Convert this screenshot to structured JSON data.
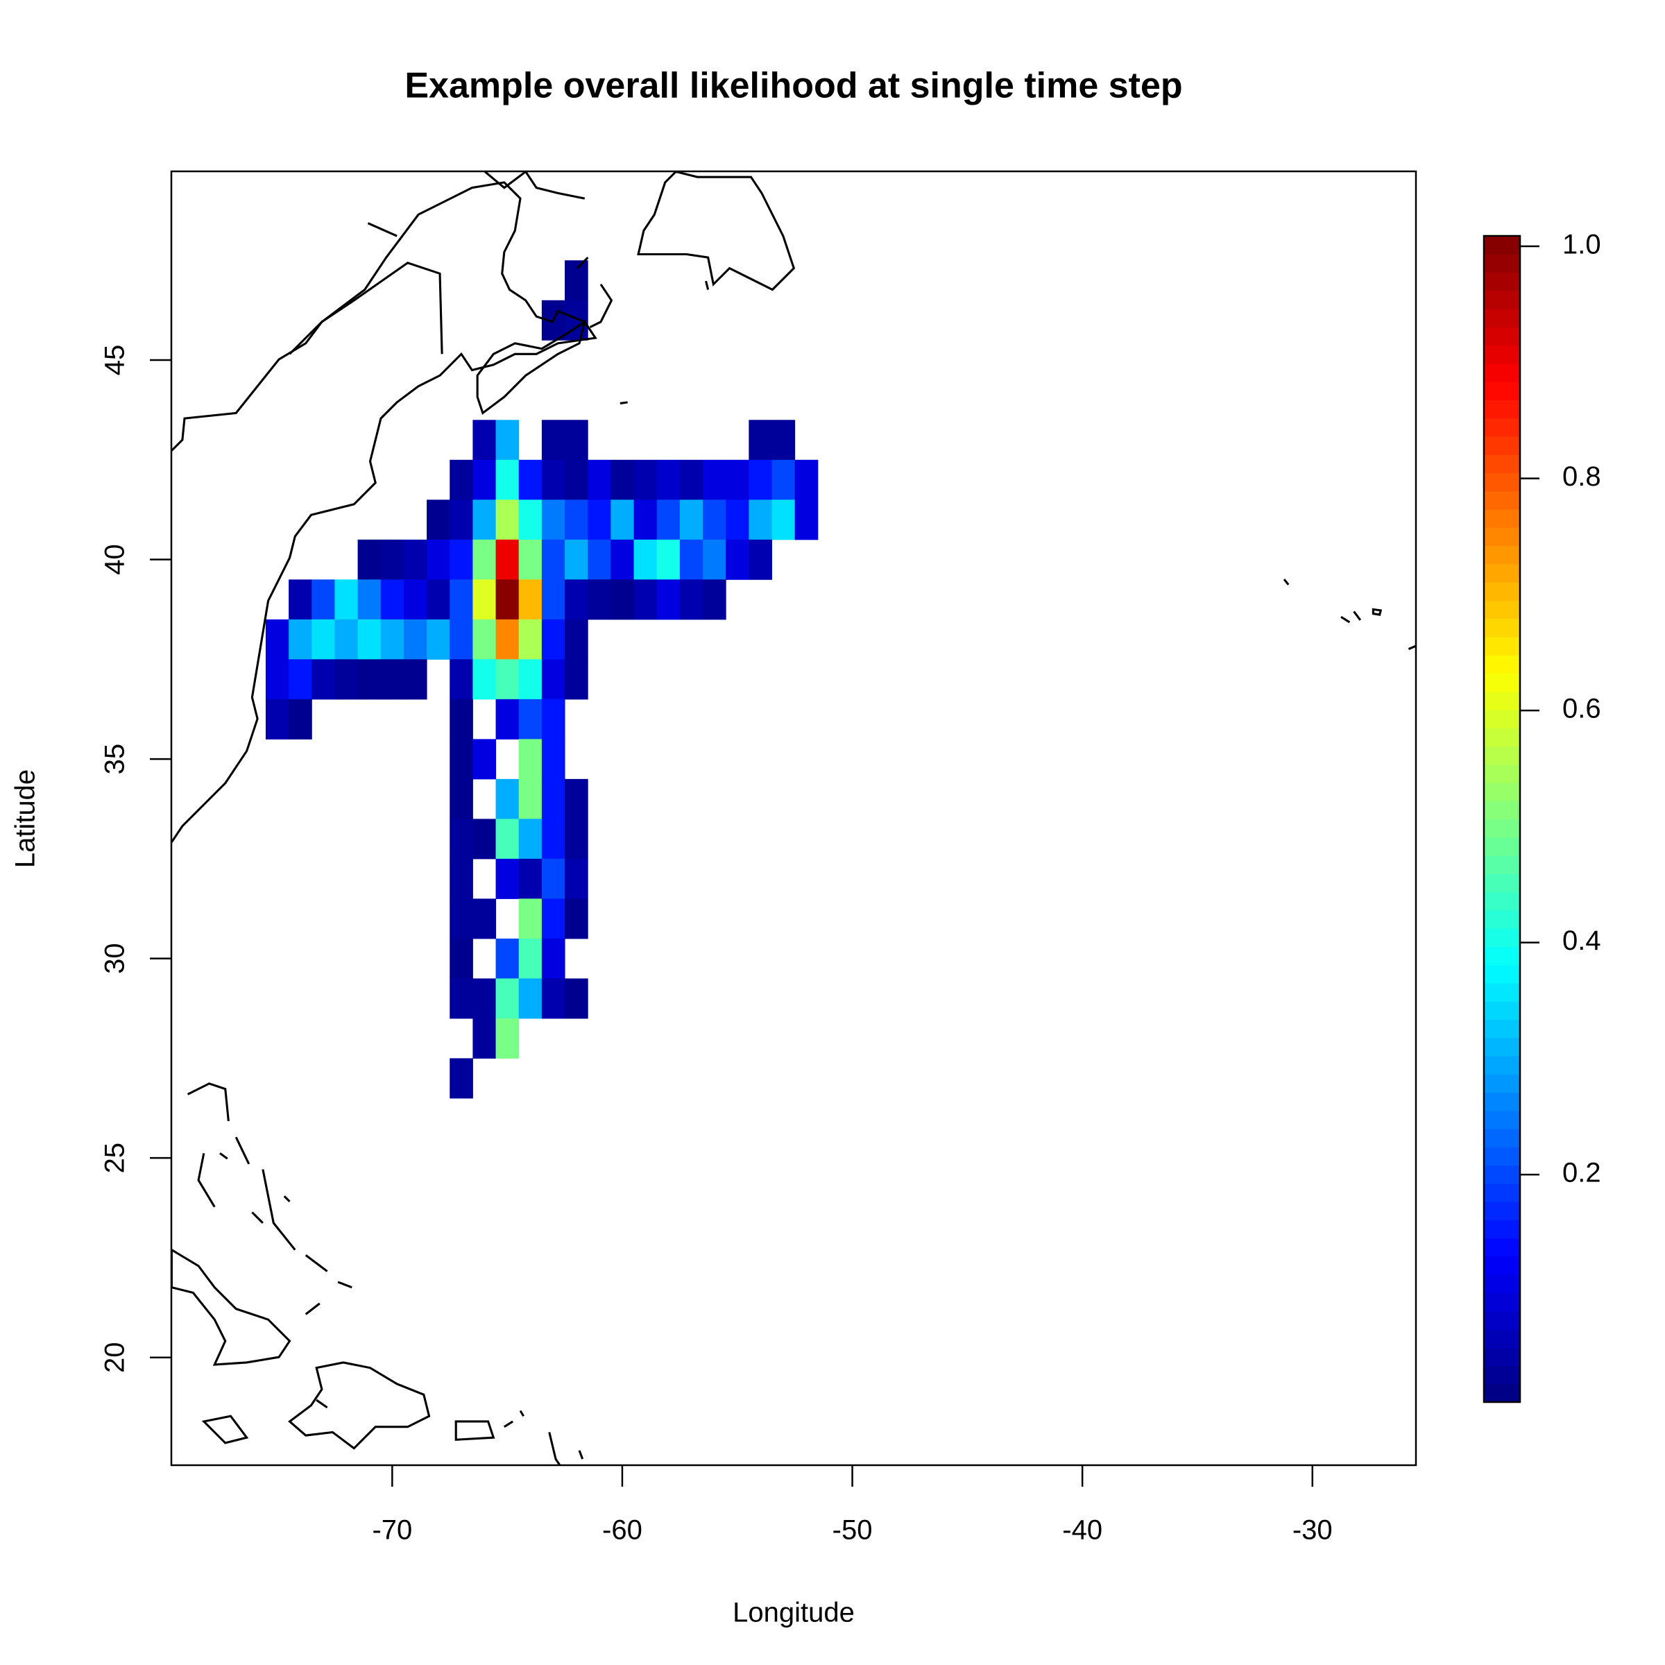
{
  "chart_data": {
    "type": "heatmap",
    "title": "Example overall likelihood at single time step",
    "xlabel": "Longitude",
    "ylabel": "Latitude",
    "xlim": [
      -79.6,
      -25.5
    ],
    "ylim": [
      17.3,
      49.73
    ],
    "xticks": [
      -70,
      -60,
      -50,
      -40,
      -30
    ],
    "yticks": [
      20,
      25,
      30,
      35,
      40,
      45
    ],
    "x": [
      -75,
      -74,
      -73,
      -72,
      -71,
      -70,
      -69,
      -68,
      -67,
      -66,
      -65,
      -64,
      -63,
      -62,
      -61,
      -60,
      -59,
      -58,
      -57,
      -56,
      -55,
      -54,
      -53,
      -52
    ],
    "y": [
      47,
      46,
      43,
      42,
      41,
      40,
      39,
      38,
      37,
      36,
      35,
      34,
      33,
      32,
      31,
      30,
      29,
      28,
      27
    ],
    "values": [
      [
        null,
        null,
        null,
        null,
        null,
        null,
        null,
        null,
        null,
        null,
        null,
        null,
        null,
        0.02,
        null,
        null,
        null,
        null,
        null,
        null,
        null,
        null,
        null,
        null
      ],
      [
        null,
        null,
        null,
        null,
        null,
        null,
        null,
        null,
        null,
        null,
        null,
        null,
        0.02,
        0.03,
        null,
        null,
        null,
        null,
        null,
        null,
        null,
        null,
        null,
        null
      ],
      [
        null,
        null,
        null,
        null,
        null,
        null,
        null,
        null,
        null,
        0.05,
        0.3,
        null,
        0.03,
        0.03,
        null,
        null,
        null,
        null,
        null,
        null,
        null,
        0.03,
        0.03,
        null
      ],
      [
        null,
        null,
        null,
        null,
        null,
        null,
        null,
        null,
        0.03,
        0.1,
        0.4,
        0.15,
        0.05,
        0.03,
        0.1,
        0.03,
        0.05,
        0.08,
        0.05,
        0.1,
        0.1,
        0.15,
        0.2,
        0.1
      ],
      [
        null,
        null,
        null,
        null,
        null,
        null,
        null,
        0.02,
        0.05,
        0.3,
        0.55,
        0.4,
        0.25,
        0.2,
        0.15,
        0.3,
        0.1,
        0.2,
        0.3,
        0.2,
        0.15,
        0.3,
        0.35,
        0.1
      ],
      [
        null,
        null,
        null,
        null,
        0.02,
        0.03,
        0.05,
        0.1,
        0.15,
        0.5,
        0.9,
        0.5,
        0.2,
        0.3,
        0.2,
        0.1,
        0.35,
        0.4,
        0.2,
        0.25,
        0.1,
        0.05,
        null,
        null
      ],
      [
        null,
        0.05,
        0.2,
        0.35,
        0.25,
        0.15,
        0.1,
        0.05,
        0.2,
        0.6,
        1.0,
        0.7,
        0.2,
        0.05,
        0.03,
        0.02,
        0.05,
        0.1,
        0.05,
        0.03,
        null,
        null,
        null,
        null
      ],
      [
        0.1,
        0.3,
        0.35,
        0.3,
        0.35,
        0.3,
        0.25,
        0.3,
        0.2,
        0.5,
        0.75,
        0.55,
        0.15,
        0.03,
        null,
        null,
        null,
        null,
        null,
        null,
        null,
        null,
        null,
        null
      ],
      [
        0.1,
        0.15,
        0.05,
        0.03,
        0.02,
        0.02,
        0.02,
        null,
        0.05,
        0.4,
        0.45,
        0.4,
        0.1,
        0.03,
        null,
        null,
        null,
        null,
        null,
        null,
        null,
        null,
        null,
        null
      ],
      [
        0.05,
        0.02,
        null,
        null,
        null,
        null,
        null,
        null,
        0.02,
        null,
        0.1,
        0.2,
        0.15,
        null,
        null,
        null,
        null,
        null,
        null,
        null,
        null,
        null,
        null,
        null
      ],
      [
        null,
        null,
        null,
        null,
        null,
        null,
        null,
        null,
        0.02,
        0.1,
        null,
        0.5,
        0.15,
        null,
        null,
        null,
        null,
        null,
        null,
        null,
        null,
        null,
        null,
        null
      ],
      [
        null,
        null,
        null,
        null,
        null,
        null,
        null,
        null,
        0.02,
        null,
        0.3,
        0.5,
        0.15,
        0.03,
        null,
        null,
        null,
        null,
        null,
        null,
        null,
        null,
        null,
        null
      ],
      [
        null,
        null,
        null,
        null,
        null,
        null,
        null,
        null,
        0.03,
        0.02,
        0.45,
        0.3,
        0.15,
        0.03,
        null,
        null,
        null,
        null,
        null,
        null,
        null,
        null,
        null,
        null
      ],
      [
        null,
        null,
        null,
        null,
        null,
        null,
        null,
        null,
        0.03,
        null,
        0.1,
        0.05,
        0.2,
        0.05,
        null,
        null,
        null,
        null,
        null,
        null,
        null,
        null,
        null,
        null
      ],
      [
        null,
        null,
        null,
        null,
        null,
        null,
        null,
        null,
        0.03,
        0.03,
        null,
        0.5,
        0.15,
        0.02,
        null,
        null,
        null,
        null,
        null,
        null,
        null,
        null,
        null,
        null
      ],
      [
        null,
        null,
        null,
        null,
        null,
        null,
        null,
        null,
        0.02,
        null,
        0.2,
        0.45,
        0.1,
        null,
        null,
        null,
        null,
        null,
        null,
        null,
        null,
        null,
        null,
        null
      ],
      [
        null,
        null,
        null,
        null,
        null,
        null,
        null,
        null,
        0.03,
        0.03,
        0.45,
        0.3,
        0.05,
        0.02,
        null,
        null,
        null,
        null,
        null,
        null,
        null,
        null,
        null,
        null
      ],
      [
        null,
        null,
        null,
        null,
        null,
        null,
        null,
        null,
        null,
        0.03,
        0.5,
        null,
        null,
        null,
        null,
        null,
        null,
        null,
        null,
        null,
        null,
        null,
        null,
        null
      ],
      [
        null,
        null,
        null,
        null,
        null,
        null,
        null,
        null,
        0.03,
        null,
        null,
        null,
        null,
        null,
        null,
        null,
        null,
        null,
        null,
        null,
        null,
        null,
        null,
        null
      ]
    ],
    "colorbar": {
      "zlim": [
        0.004,
        1.009
      ],
      "ticks": [
        0.2,
        0.4,
        0.6,
        0.8,
        {
          "value": 1,
          "label": "1.0"
        }
      ]
    }
  }
}
